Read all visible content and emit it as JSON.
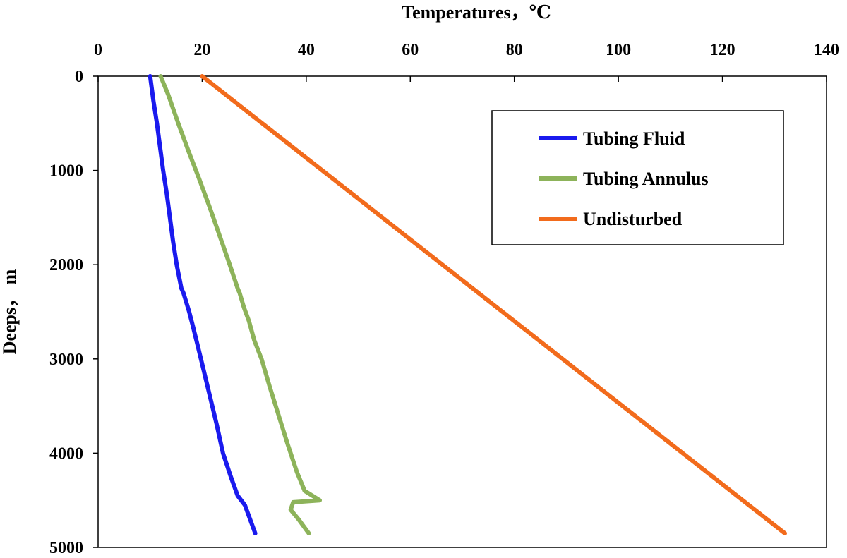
{
  "chart_data": {
    "type": "line",
    "title": "",
    "xlabel": "Temperatures，℃",
    "ylabel": "Deeps， m",
    "x_axis_position": "top",
    "y_axis_inverted": true,
    "xlim": [
      0,
      140
    ],
    "ylim": [
      0,
      5000
    ],
    "x_ticks": [
      "0",
      "20",
      "40",
      "60",
      "80",
      "100",
      "120",
      "140"
    ],
    "y_ticks": [
      "0",
      "1000",
      "2000",
      "3000",
      "4000",
      "5000"
    ],
    "grid": false,
    "legend_position": "top-right",
    "series": [
      {
        "name": "Tubing Fluid",
        "color": "#1a1aee",
        "points": [
          [
            10.0,
            0
          ],
          [
            10.6,
            250
          ],
          [
            11.3,
            500
          ],
          [
            11.9,
            750
          ],
          [
            12.5,
            1000
          ],
          [
            13.2,
            1250
          ],
          [
            13.8,
            1500
          ],
          [
            14.4,
            1750
          ],
          [
            15.1,
            2000
          ],
          [
            16.0,
            2250
          ],
          [
            16.4,
            2300
          ],
          [
            17.5,
            2500
          ],
          [
            18.2,
            2650
          ],
          [
            19.1,
            2850
          ],
          [
            20.2,
            3100
          ],
          [
            21.5,
            3400
          ],
          [
            22.8,
            3700
          ],
          [
            24.0,
            4000
          ],
          [
            25.5,
            4250
          ],
          [
            26.8,
            4450
          ],
          [
            28.2,
            4550
          ],
          [
            29.2,
            4700
          ],
          [
            30.2,
            4850
          ]
        ]
      },
      {
        "name": "Tubing Annulus",
        "color": "#8db35a",
        "points": [
          [
            12.0,
            0
          ],
          [
            13.5,
            200
          ],
          [
            15.4,
            500
          ],
          [
            17.4,
            800
          ],
          [
            19.5,
            1100
          ],
          [
            21.5,
            1400
          ],
          [
            23.4,
            1700
          ],
          [
            25.3,
            2000
          ],
          [
            26.8,
            2250
          ],
          [
            27.2,
            2300
          ],
          [
            28.0,
            2450
          ],
          [
            29.0,
            2600
          ],
          [
            30.0,
            2800
          ],
          [
            31.4,
            3000
          ],
          [
            33.0,
            3300
          ],
          [
            34.7,
            3600
          ],
          [
            36.4,
            3900
          ],
          [
            38.2,
            4200
          ],
          [
            39.7,
            4400
          ],
          [
            42.6,
            4500
          ],
          [
            37.5,
            4520
          ],
          [
            37.0,
            4600
          ],
          [
            38.5,
            4700
          ],
          [
            40.5,
            4850
          ]
        ]
      },
      {
        "name": "Undisturbed",
        "color": "#f26b1c",
        "points": [
          [
            20.0,
            0
          ],
          [
            132.0,
            4850
          ]
        ]
      }
    ]
  }
}
